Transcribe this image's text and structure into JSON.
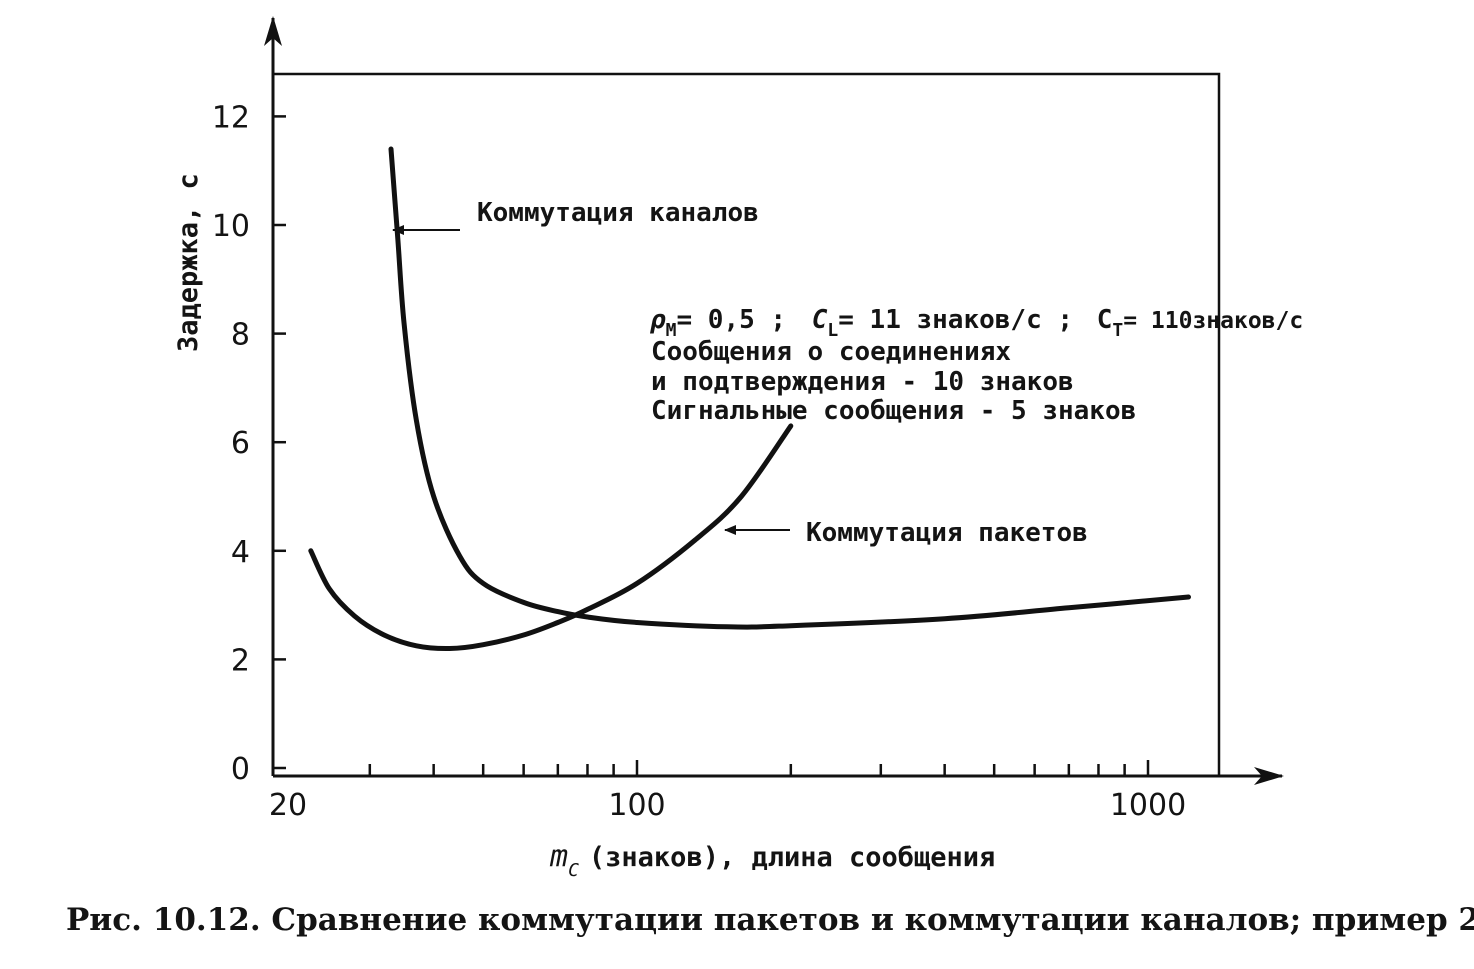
{
  "chart_data": {
    "type": "line",
    "title": "",
    "xlabel": "(знаков), длина сообщения",
    "xlabel_symbol": "m",
    "xlabel_symbol_sub": "C",
    "ylabel": "Задержка, с",
    "x_scale": "log",
    "xlim": [
      20,
      1400
    ],
    "ylim": [
      0,
      12.9
    ],
    "x_ticks": [
      20,
      100,
      1000
    ],
    "x_tick_labels": [
      "20",
      "100",
      "1000"
    ],
    "x_minor_ticks": [
      30,
      40,
      50,
      60,
      70,
      80,
      90,
      200,
      300,
      400,
      500,
      600,
      700,
      800,
      900
    ],
    "y_ticks": [
      0,
      2,
      4,
      6,
      8,
      10,
      12
    ],
    "y_tick_labels": [
      "0",
      "2",
      "4",
      "6",
      "8",
      "10",
      "12"
    ],
    "grid": false,
    "series": [
      {
        "name": "Коммутация каналов",
        "x": [
          33,
          34,
          35,
          37,
          40,
          45,
          50,
          60,
          70,
          80,
          100,
          150,
          200,
          400,
          700,
          1200
        ],
        "y": [
          11.4,
          9.8,
          8.2,
          6.4,
          5.0,
          3.9,
          3.4,
          3.05,
          2.88,
          2.78,
          2.68,
          2.6,
          2.62,
          2.75,
          2.95,
          3.15
        ]
      },
      {
        "name": "Коммутация пакетов",
        "x": [
          23,
          25,
          28,
          32,
          37,
          43,
          50,
          60,
          70,
          80,
          100,
          130,
          160,
          200
        ],
        "y": [
          4.0,
          3.3,
          2.8,
          2.45,
          2.25,
          2.2,
          2.27,
          2.45,
          2.68,
          2.92,
          3.4,
          4.2,
          5.0,
          6.3
        ]
      }
    ],
    "annotations": {
      "params_line1": {
        "rho": "ρ",
        "rho_sub": "M",
        "rho_val": "= 0,5 ;",
        "cl": "C",
        "cl_sub": "L",
        "cl_val": "= 11 знаков/с ;",
        "ct": "C",
        "ct_sub": "T",
        "ct_val": "= 110знаков/с"
      },
      "params_line2": "Сообщения о соединениях",
      "params_line3": "и подтверждения - 10 знаков",
      "params_line4": "Сигнальные сообщения - 5 знаков"
    }
  },
  "caption": "Рис. 10.12. Сравнение коммутации пакетов и коммутации каналов; пример 2"
}
